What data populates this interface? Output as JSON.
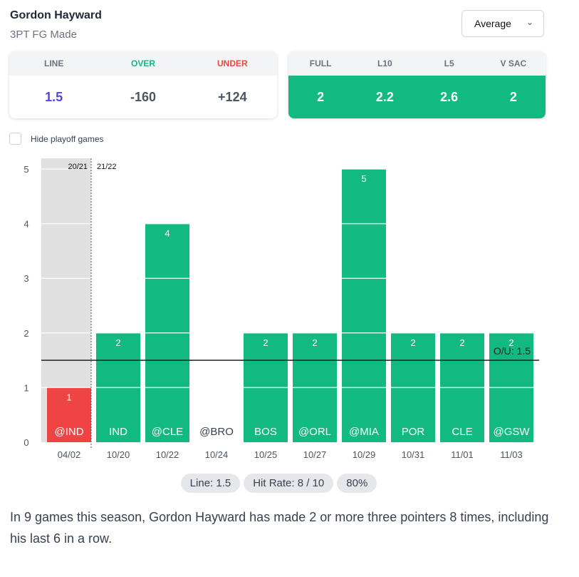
{
  "header": {
    "title": "Gordon Hayward",
    "subtitle": "3PT FG Made",
    "dropdown": "Average"
  },
  "odds": {
    "headers": [
      "LINE",
      "OVER",
      "UNDER"
    ],
    "values": [
      "1.5",
      "-160",
      "+124"
    ]
  },
  "averages": {
    "headers": [
      "FULL",
      "L10",
      "L5",
      "V SAC"
    ],
    "values": [
      "2",
      "2.2",
      "2.6",
      "2"
    ]
  },
  "filter": {
    "hide_playoff_label": "Hide playoff games",
    "checked": false
  },
  "colors": {
    "over": "#12b981",
    "under": "#ef4444",
    "line": "#4f46e5",
    "prev_season_bg": "#e0e0e0"
  },
  "chart_data": {
    "type": "bar",
    "categories": [
      "04/02",
      "10/20",
      "10/22",
      "10/24",
      "10/25",
      "10/27",
      "10/29",
      "10/31",
      "11/01",
      "11/03"
    ],
    "opponents": [
      "@IND",
      "IND",
      "@CLE",
      "@BRO",
      "BOS",
      "@ORL",
      "@MIA",
      "POR",
      "CLE",
      "@GSW"
    ],
    "values": [
      1,
      2,
      4,
      0,
      2,
      2,
      5,
      2,
      2,
      2
    ],
    "ylim": [
      0,
      5
    ],
    "yticks": [
      "0",
      "1",
      "2",
      "3",
      "4",
      "5"
    ],
    "line": 1.5,
    "line_label": "O/U: 1.5",
    "seasons": [
      "20/21",
      "21/22"
    ],
    "prev_season_count": 1
  },
  "pills": [
    "Line: 1.5",
    "Hit Rate: 8 / 10",
    "80%"
  ],
  "summary": "In 9 games this season, Gordon Hayward has made 2 or more three pointers 8 times, including his last 6 in a row."
}
